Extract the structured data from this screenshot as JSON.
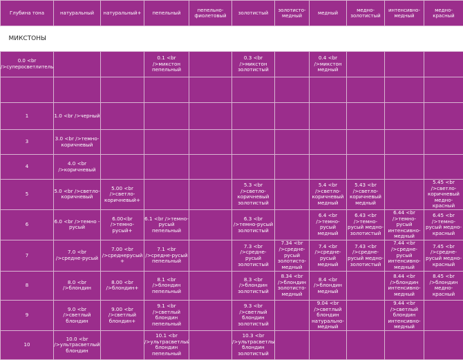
{
  "headers": [
    "Глубина тона",
    "натуральный",
    "натуральный+",
    "пепельный",
    "пепельно-фиолетовый",
    "золотистый",
    "золотисто-медный",
    "медный",
    "медно-золотистый",
    "интенсивно-медный",
    "медно-красный"
  ],
  "section_title": "МИКСТОНЫ",
  "rows": [
    {
      "depth": "0.0 <br />суперосветлитель",
      "cells": [
        "",
        "",
        "0.1 <br />микстон пепельный",
        "",
        "0.3 <br />микстон золотистый",
        "",
        "0.4 <br />микстон медный",
        "",
        "",
        ""
      ]
    },
    {
      "depth": "",
      "cells": [
        "",
        "",
        "",
        "",
        "",
        "",
        "",
        "",
        "",
        ""
      ]
    },
    {
      "depth": "1",
      "cells": [
        "1.0 <br />черный",
        "",
        "",
        "",
        "",
        "",
        "",
        "",
        "",
        ""
      ]
    },
    {
      "depth": "3",
      "cells": [
        "3.0 <br />темно-коричневый",
        "",
        "",
        "",
        "",
        "",
        "",
        "",
        "",
        ""
      ]
    },
    {
      "depth": "4",
      "cells": [
        "4.0 <br />коричневый",
        "",
        "",
        "",
        "",
        "",
        "",
        "",
        "",
        ""
      ]
    },
    {
      "depth": "5",
      "cells": [
        "5.0 <br />светло-коричневый",
        "5.00 <br />светло-коричневый+",
        "",
        "",
        "5.3 <br />светло-коричневый золотистый",
        "",
        "5.4 <br />светло-коричневый медный",
        "5.43 <br />светло-коричневый медный",
        "",
        "5.45 <br />светло-коричневый медно-красный"
      ]
    },
    {
      "depth": "6",
      "cells": [
        "6.0 <br />темно - русый",
        "6.00<br />темно-русый+",
        "6.1 <br />темно-русый пепельный",
        "",
        "6.3 <br />темно-русый золотистый",
        "",
        "6.4 <br />темно-русый медный",
        "6.43 <br />темно-русый медно-золотистый",
        "6.44 <br />темно-русый интенсивно-медный",
        "6.45 <br />темно-русый медно-красный"
      ]
    },
    {
      "depth": "7",
      "cells": [
        "7.0 <br />средне-русый",
        "7.00 <br />среднерусый +",
        "7.1 <br />средне-русый пепельный",
        "",
        "7.3 <br />средне-русый золотистый",
        "7.34 <br />средне-русый золотисто-медный",
        "7.4 <br />средне-русый медный",
        "7.43 <br />средне-русый медно-золотистый",
        "7.44 <br />средне-русый интенсивно-медный",
        "7.45 <br />средне-русый медно-красный"
      ]
    },
    {
      "depth": "8",
      "cells": [
        "8.0 <br />блондин",
        "8.00 <br />блондин+",
        "8.1 <br />блондин пепельный",
        "",
        "8.3 <br />блондин золотистый",
        "8.34 <br />блондин золотисто-медный",
        "8.4 <br />блондин медный",
        "",
        "8.44 <br />блондин интенсивно-медный",
        "8.45 <br />блондин медно-красный"
      ]
    },
    {
      "depth": "9",
      "cells": [
        "9.0 <br />светлый блондин",
        "9.00 <br />светлый блондин+",
        "9.1 <br />светлый блондин пепельный",
        "",
        "9.3 <br />светлый блондин золотистый",
        "",
        "9.04 <br />светлый блондин натурально-медный",
        "",
        "9.44 <br />светлый блондин интенсивно-медный",
        ""
      ]
    },
    {
      "depth": "10",
      "cells": [
        "10.0 <br />ультрасветлый блондин",
        "",
        "10.1 <br />ультрасветлый блондин пепельный",
        "",
        "10.3 <br />ультрасветлый блондин золотистый",
        "",
        "",
        "",
        "",
        ""
      ]
    }
  ],
  "colors": {
    "cell_bg": "#9b2d8c",
    "border": "#d9b6d3",
    "section_bg": "#ffffff"
  }
}
